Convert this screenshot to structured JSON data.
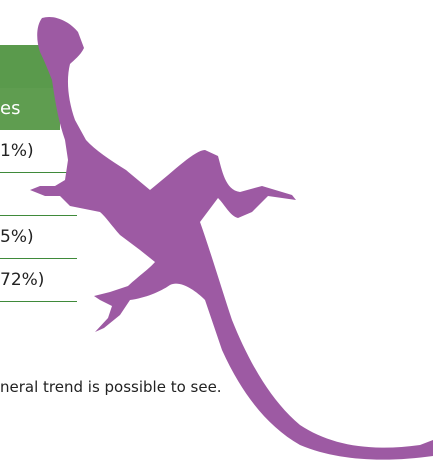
{
  "table": {
    "header": "es",
    "rows": [
      "1%)",
      "5%)",
      "72%)"
    ]
  },
  "caption": "neral trend is possible to see."
}
